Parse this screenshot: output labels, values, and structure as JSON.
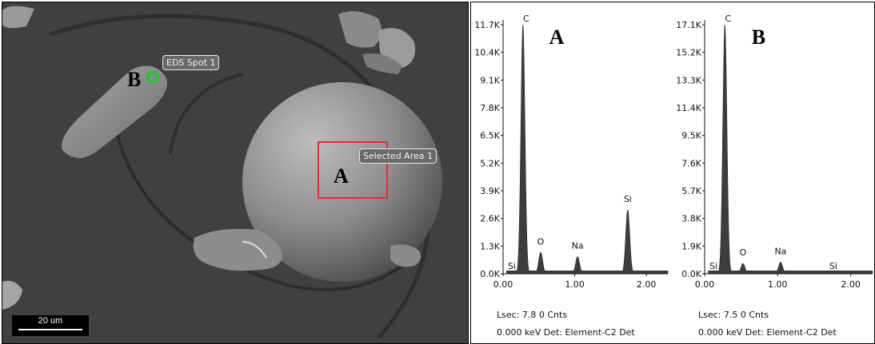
{
  "sem_image": {
    "spot_label": "EDS Spot 1",
    "area_label": "Selected Area 1",
    "spot_marker": "B",
    "area_marker": "A",
    "scale_bar_label": "20 um",
    "area_box_color": "#e0302e",
    "spot_color": "#2bbf3a"
  },
  "chart_data": [
    {
      "type": "area",
      "panel_letter": "A",
      "x_ticks": [
        "0.00",
        "1.00",
        "2.00"
      ],
      "y_ticks": [
        "0.0K",
        "1.3K",
        "2.6K",
        "3.9K",
        "5.2K",
        "6.5K",
        "7.8K",
        "9.1K",
        "10.4K",
        "11.7K"
      ],
      "xlim": [
        0,
        2.3
      ],
      "ylim": [
        0,
        11.7
      ],
      "peaks": [
        {
          "label": "C",
          "x": 0.277,
          "y": 11.7
        },
        {
          "label": "O",
          "x": 0.525,
          "y": 1.0
        },
        {
          "label": "Na",
          "x": 1.04,
          "y": 0.8
        },
        {
          "label": "Si",
          "x": 1.74,
          "y": 3.0
        },
        {
          "label": "Si",
          "x": 0.1,
          "y": 0.05
        }
      ],
      "footer_line1": "Lsec: 7.8 0 Cnts",
      "footer_line2": "0.000 keV Det: Element-C2 Det"
    },
    {
      "type": "area",
      "panel_letter": "B",
      "x_ticks": [
        "0.00",
        "1.00",
        "2.00"
      ],
      "y_ticks": [
        "0.0K",
        "1.9K",
        "3.8K",
        "5.7K",
        "7.6K",
        "9.5K",
        "11.4K",
        "13.3K",
        "15.2K",
        "17.1K"
      ],
      "xlim": [
        0,
        2.3
      ],
      "ylim": [
        0,
        17.1
      ],
      "peaks": [
        {
          "label": "C",
          "x": 0.277,
          "y": 17.1
        },
        {
          "label": "O",
          "x": 0.525,
          "y": 0.7
        },
        {
          "label": "Na",
          "x": 1.04,
          "y": 0.8
        },
        {
          "label": "Si",
          "x": 1.74,
          "y": 0.05
        },
        {
          "label": "Si",
          "x": 0.1,
          "y": 0.05
        }
      ],
      "footer_line1": "Lsec: 7.5 0 Cnts",
      "footer_line2": "0.000 keV Det: Element-C2 Det"
    }
  ]
}
